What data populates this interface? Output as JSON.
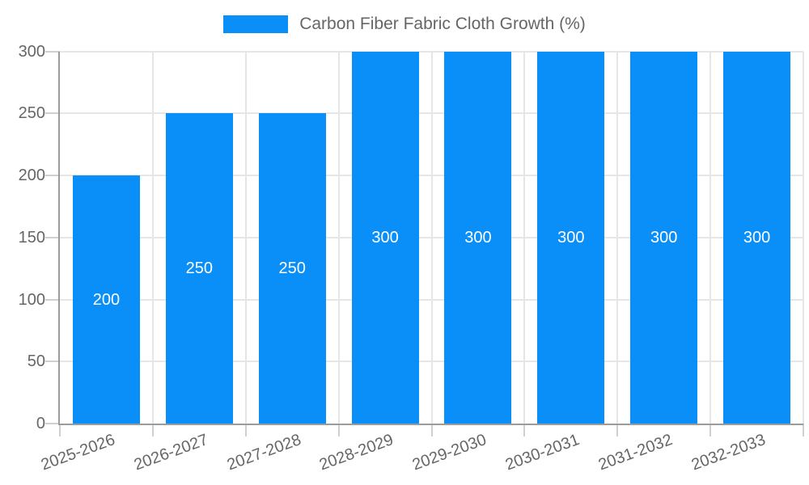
{
  "chart_data": {
    "type": "bar",
    "legend_label": "Carbon Fiber Fabric Cloth Growth (%)",
    "categories": [
      "2025-2026",
      "2026-2027",
      "2027-2028",
      "2028-2029",
      "2029-2030",
      "2030-2031",
      "2031-2032",
      "2032-2033"
    ],
    "values": [
      200,
      250,
      250,
      300,
      300,
      300,
      300,
      300
    ],
    "value_labels": [
      "200",
      "250",
      "250",
      "300",
      "300",
      "300",
      "300",
      "300"
    ],
    "ylim": [
      0,
      300
    ],
    "yticks": [
      0,
      50,
      100,
      150,
      200,
      250,
      300
    ],
    "grid": true,
    "legend_position": "top",
    "xlabel": "",
    "ylabel": "",
    "colors": {
      "bar": "#0a8ff9",
      "grid": "#e6e6e6",
      "axis": "#9b9b9b",
      "tick": "#d0d0d0",
      "tick_text": "#666666",
      "value_label": "#ffffff"
    }
  }
}
